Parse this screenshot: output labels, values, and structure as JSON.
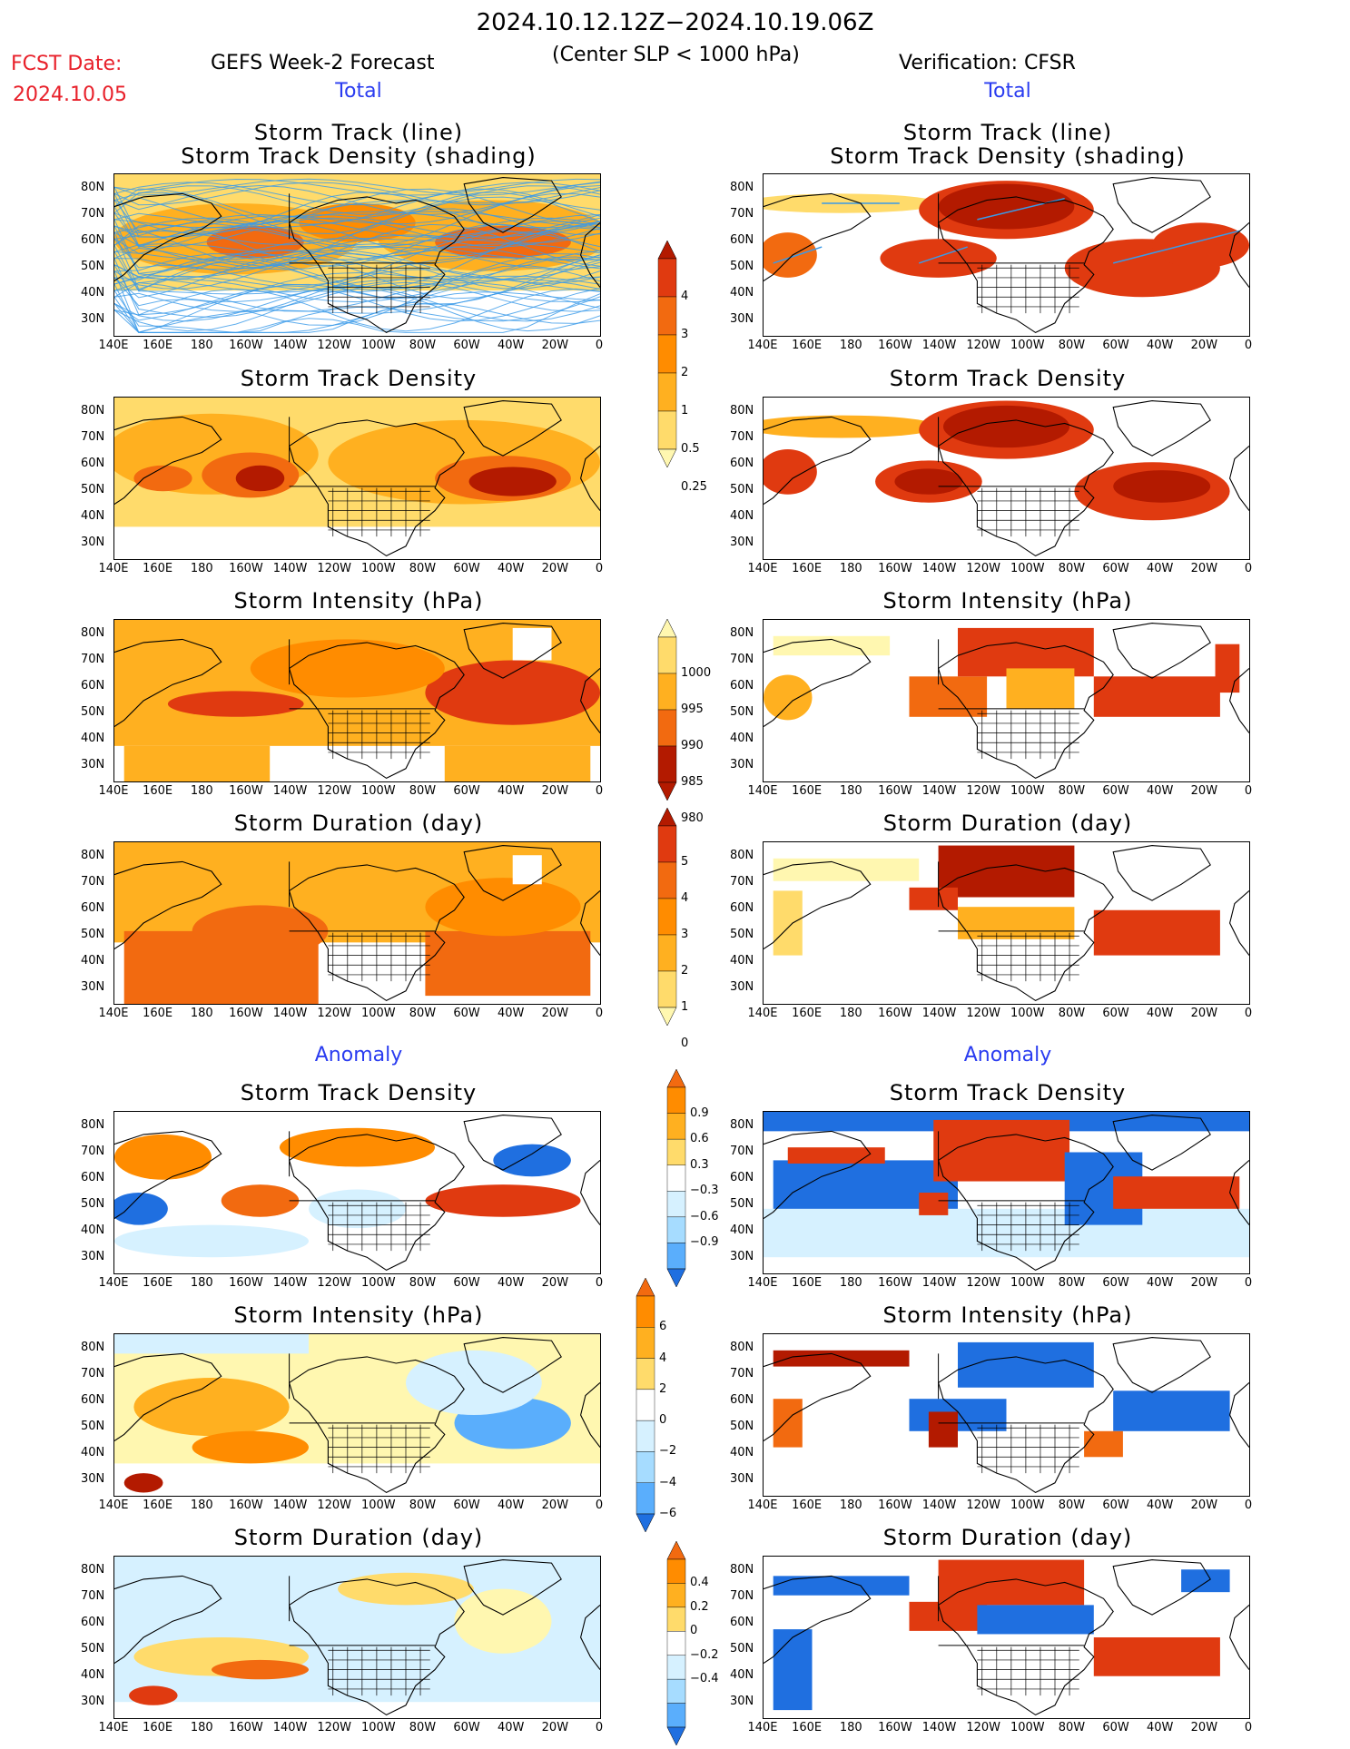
{
  "header": {
    "date_range": "2024.10.12.12Z−2024.10.19.06Z",
    "fcst_label": "FCST Date:",
    "fcst_date": "2024.10.05",
    "model": "GEFS Week-2 Forecast",
    "criterion": "(Center SLP < 1000 hPa)",
    "verification": "Verification: CFSR",
    "col_total": "Total",
    "col_anomaly": "Anomaly"
  },
  "panel_titles": {
    "track_line": "Storm Track (line)",
    "track_shading": "Storm Track Density (shading)",
    "density": "Storm Track Density",
    "intensity": "Storm Intensity (hPa)",
    "duration": "Storm Duration (day)"
  },
  "axes": {
    "lat_labels": [
      "80N",
      "70N",
      "60N",
      "50N",
      "40N",
      "30N"
    ],
    "lon_labels": [
      "140E",
      "160E",
      "180",
      "160W",
      "140W",
      "120W",
      "100W",
      "80W",
      "60W",
      "40W",
      "20W",
      "0"
    ]
  },
  "colorbars": {
    "density_total": [
      "4",
      "3",
      "2",
      "1",
      "0.5",
      "0.25"
    ],
    "intensity_total": [
      "1000",
      "995",
      "990",
      "985",
      "980"
    ],
    "duration_total": [
      "5",
      "4",
      "3",
      "2",
      "1",
      "0"
    ],
    "density_anom": [
      "0.9",
      "0.6",
      "0.3",
      "−0.3",
      "−0.6",
      "−0.9"
    ],
    "intensity_anom": [
      "6",
      "4",
      "2",
      "0",
      "−2",
      "−4",
      "−6"
    ],
    "duration_anom": [
      "0.4",
      "0.2",
      "0",
      "−0.2",
      "−0.4"
    ]
  },
  "colors": {
    "warm": [
      "#fff7b0",
      "#ffdb6b",
      "#ffb020",
      "#ff8c00",
      "#f26a10",
      "#e03a10",
      "#b31a00"
    ],
    "cool": [
      "#d6f1ff",
      "#a6dcff",
      "#5aaefc",
      "#1f6fe0"
    ],
    "track_line": "#3a9ae8",
    "title_red": "#e8202a",
    "title_blue": "#2a3cf0"
  }
}
